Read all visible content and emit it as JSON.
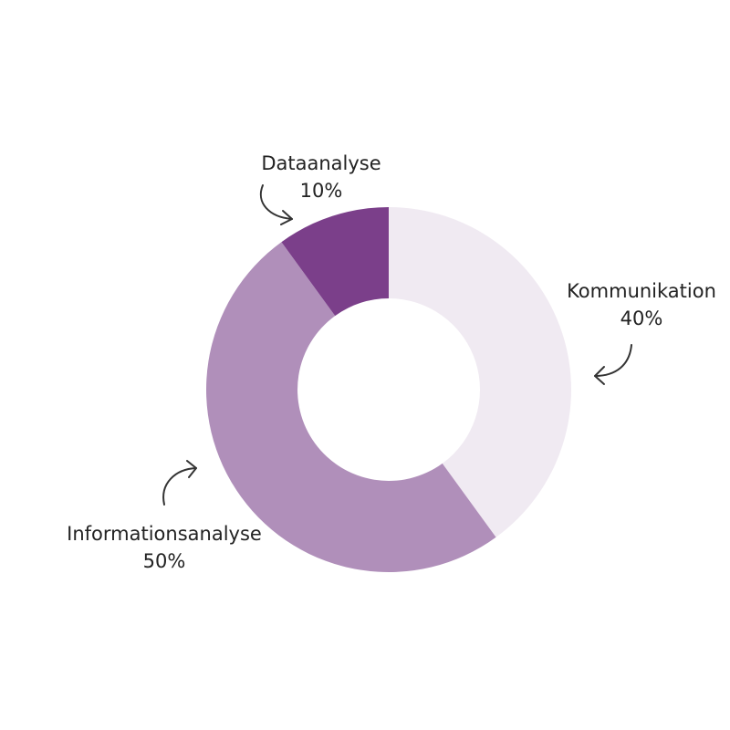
{
  "chart_data": {
    "type": "pie",
    "donut": true,
    "categories": [
      "Kommunikation",
      "Informationsanalyse",
      "Dataanalyse"
    ],
    "values": [
      40,
      50,
      10
    ],
    "value_labels": [
      "40%",
      "50%",
      "10%"
    ],
    "colors": [
      "#f0eaf2",
      "#b08fba",
      "#7b3f8a"
    ]
  }
}
